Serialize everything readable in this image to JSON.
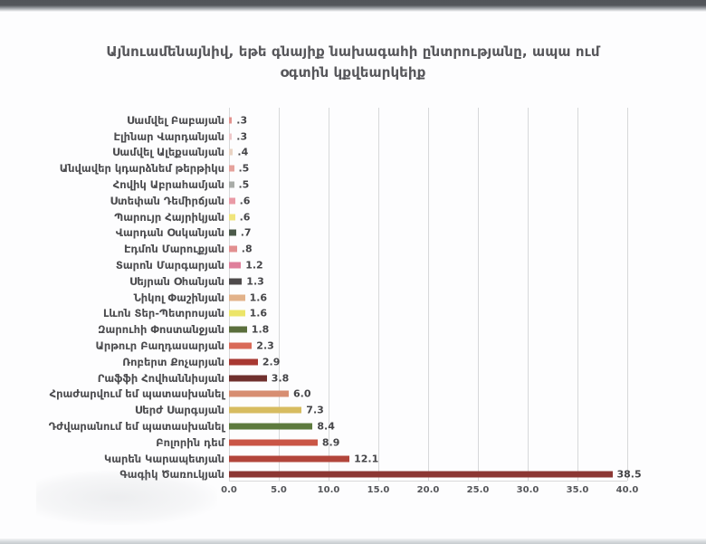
{
  "chart_data": {
    "type": "bar",
    "orientation": "horizontal",
    "title": "Այնուամենայնիվ, եթե գնայիք նախագահի ընտրությանը, ապա ում օգտին կքվեարկեիք",
    "categories": [
      "Սամվել Բաբայան",
      "Էլինար Վարդանյան",
      "Սամվել Ալեքսանյան",
      "Անվավեր կդարձնեմ թերթիկս",
      "Հովիկ Աբրահամյան",
      "Ստեփան Դեմիրճյան",
      "Պարույր Հայրիկյան",
      "Վարդան Օսկանյան",
      "Էդմոն Մարուքյան",
      "Տարոն Մարգարյան",
      "Սեյրան Օհանյան",
      "Նիկոլ Փաշինյան",
      "Լևոն Տեր-Պետրոսյան",
      "Զարուհի Փոստանջյան",
      "Արթուր Բաղդասարյան",
      "Ռոբերտ Քոչարյան",
      "Րաֆֆի Հովհաննիսյան",
      "Հրաժարվում եմ պատասխանել",
      "Սերժ Սարգսյան",
      "Դժվարանում եմ պատասխանել",
      "Բոլորին դեմ",
      "Կարեն Կարապետյան",
      "Գագիկ Ծառուկյան"
    ],
    "values": [
      0.3,
      0.3,
      0.4,
      0.5,
      0.5,
      0.6,
      0.6,
      0.7,
      0.8,
      1.2,
      1.3,
      1.6,
      1.6,
      1.8,
      2.3,
      2.9,
      3.8,
      6.0,
      7.3,
      8.4,
      8.9,
      12.1,
      38.5
    ],
    "value_labels": [
      ".3",
      ".3",
      ".4",
      ".5",
      ".5",
      ".6",
      ".6",
      ".7",
      ".8",
      "1.2",
      "1.3",
      "1.6",
      "1.6",
      "1.8",
      "2.3",
      "2.9",
      "3.8",
      "6.0",
      "7.3",
      "8.4",
      "8.9",
      "12.1",
      "38.5"
    ],
    "bar_colors": [
      "#e2928e",
      "#eec7c9",
      "#e9d3c3",
      "#e5a29c",
      "#a9aca8",
      "#e99aa6",
      "#f0e57c",
      "#4c5a4a",
      "#e28f90",
      "#df7f9b",
      "#4e4a4b",
      "#e2b28a",
      "#ece569",
      "#5b6f3d",
      "#d96a58",
      "#a83832",
      "#70302e",
      "#d78e72",
      "#d7bc60",
      "#5d7a3e",
      "#ca5646",
      "#b2453b",
      "#8c3734"
    ],
    "x_ticks": [
      "0.0",
      "5.0",
      "10.0",
      "15.0",
      "20.0",
      "25.0",
      "30.0",
      "35.0",
      "40.0"
    ],
    "xlim": [
      0,
      40
    ],
    "grid": true,
    "legend": false
  }
}
